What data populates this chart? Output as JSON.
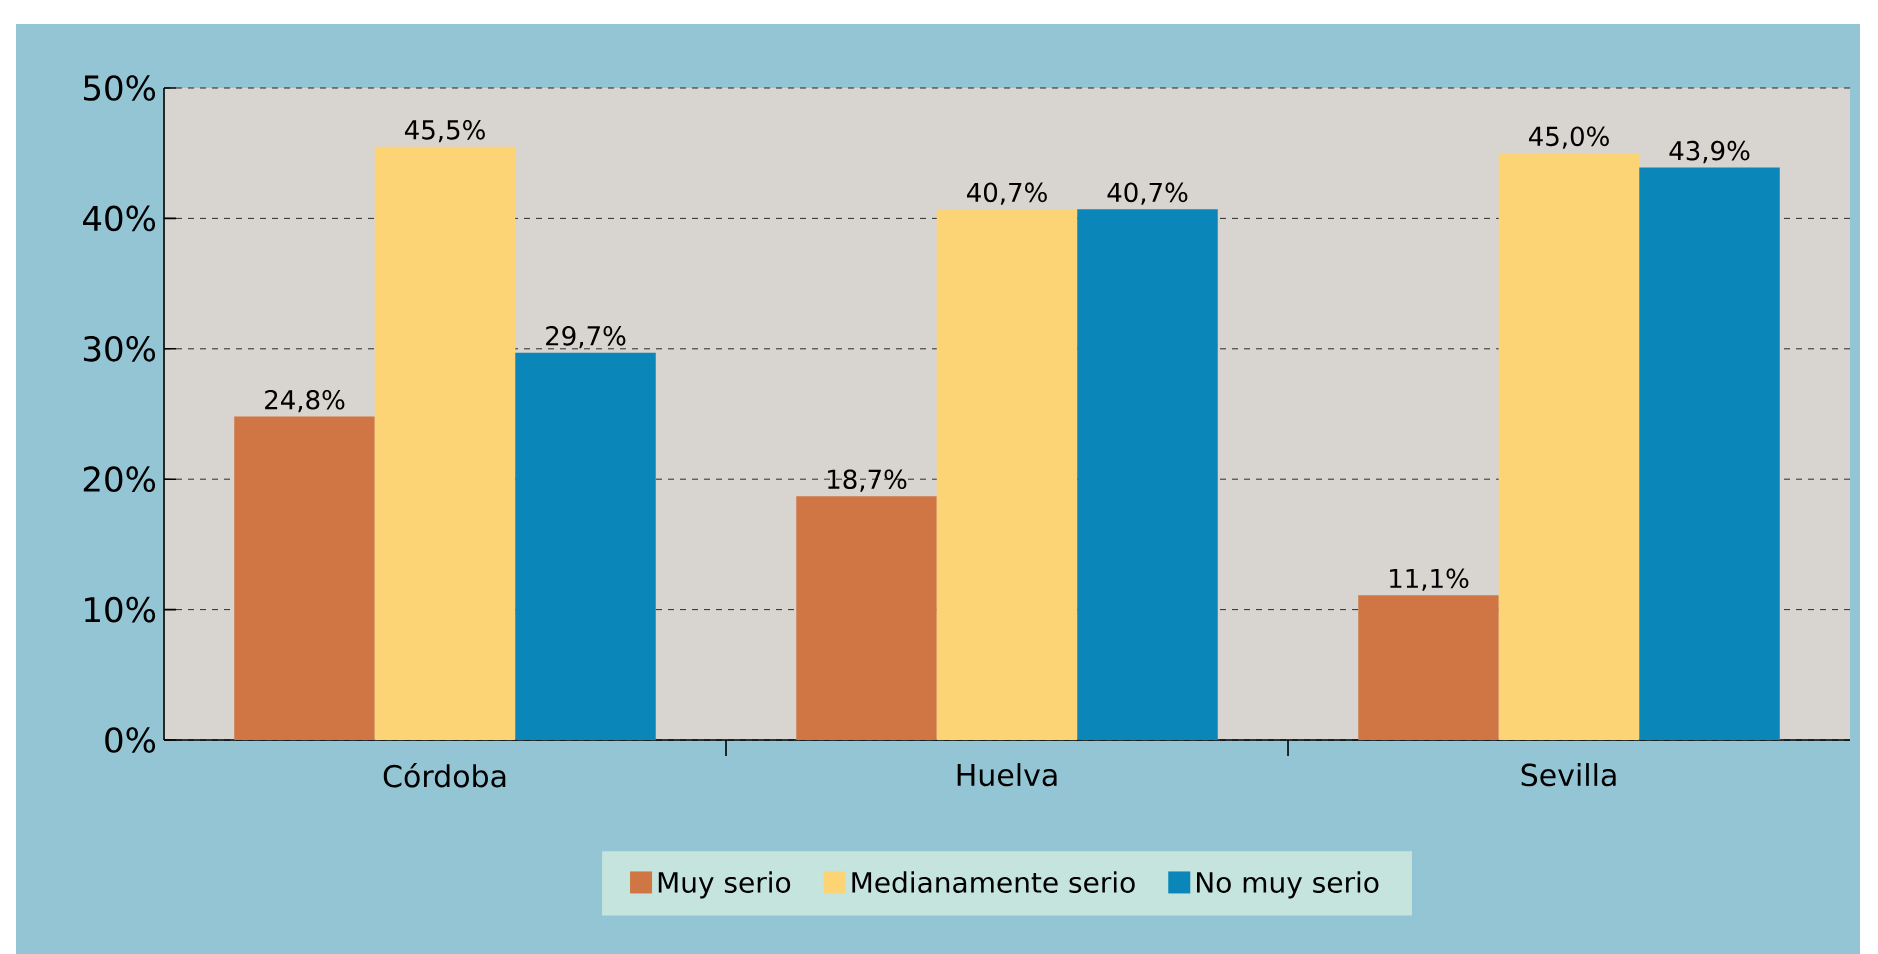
{
  "chart_data": {
    "type": "bar",
    "categories": [
      "Córdoba",
      "Huelva",
      "Sevilla"
    ],
    "series": [
      {
        "name": "Muy serio",
        "color": "#cf7644",
        "values": [
          24.8,
          18.7,
          11.1
        ],
        "value_labels": [
          "24,8%",
          "18,7%",
          "11,1%"
        ]
      },
      {
        "name": "Medianamente serio",
        "color": "#fcd475",
        "values": [
          45.5,
          40.7,
          45.0
        ],
        "value_labels": [
          "45,5%",
          "40,7%",
          "45,0%"
        ]
      },
      {
        "name": "No muy serio",
        "color": "#0a87b8",
        "values": [
          29.7,
          40.7,
          43.9
        ],
        "value_labels": [
          "29,7%",
          "40,7%",
          "43,9%"
        ]
      }
    ],
    "ylim": [
      0,
      50
    ],
    "yticks": [
      {
        "value": 0,
        "label": "0%"
      },
      {
        "value": 10,
        "label": "10%"
      },
      {
        "value": 20,
        "label": "20%"
      },
      {
        "value": 30,
        "label": "30%"
      },
      {
        "value": 40,
        "label": "40%"
      },
      {
        "value": 50,
        "label": "50%"
      }
    ],
    "grid": "y",
    "legend": "bottom"
  }
}
